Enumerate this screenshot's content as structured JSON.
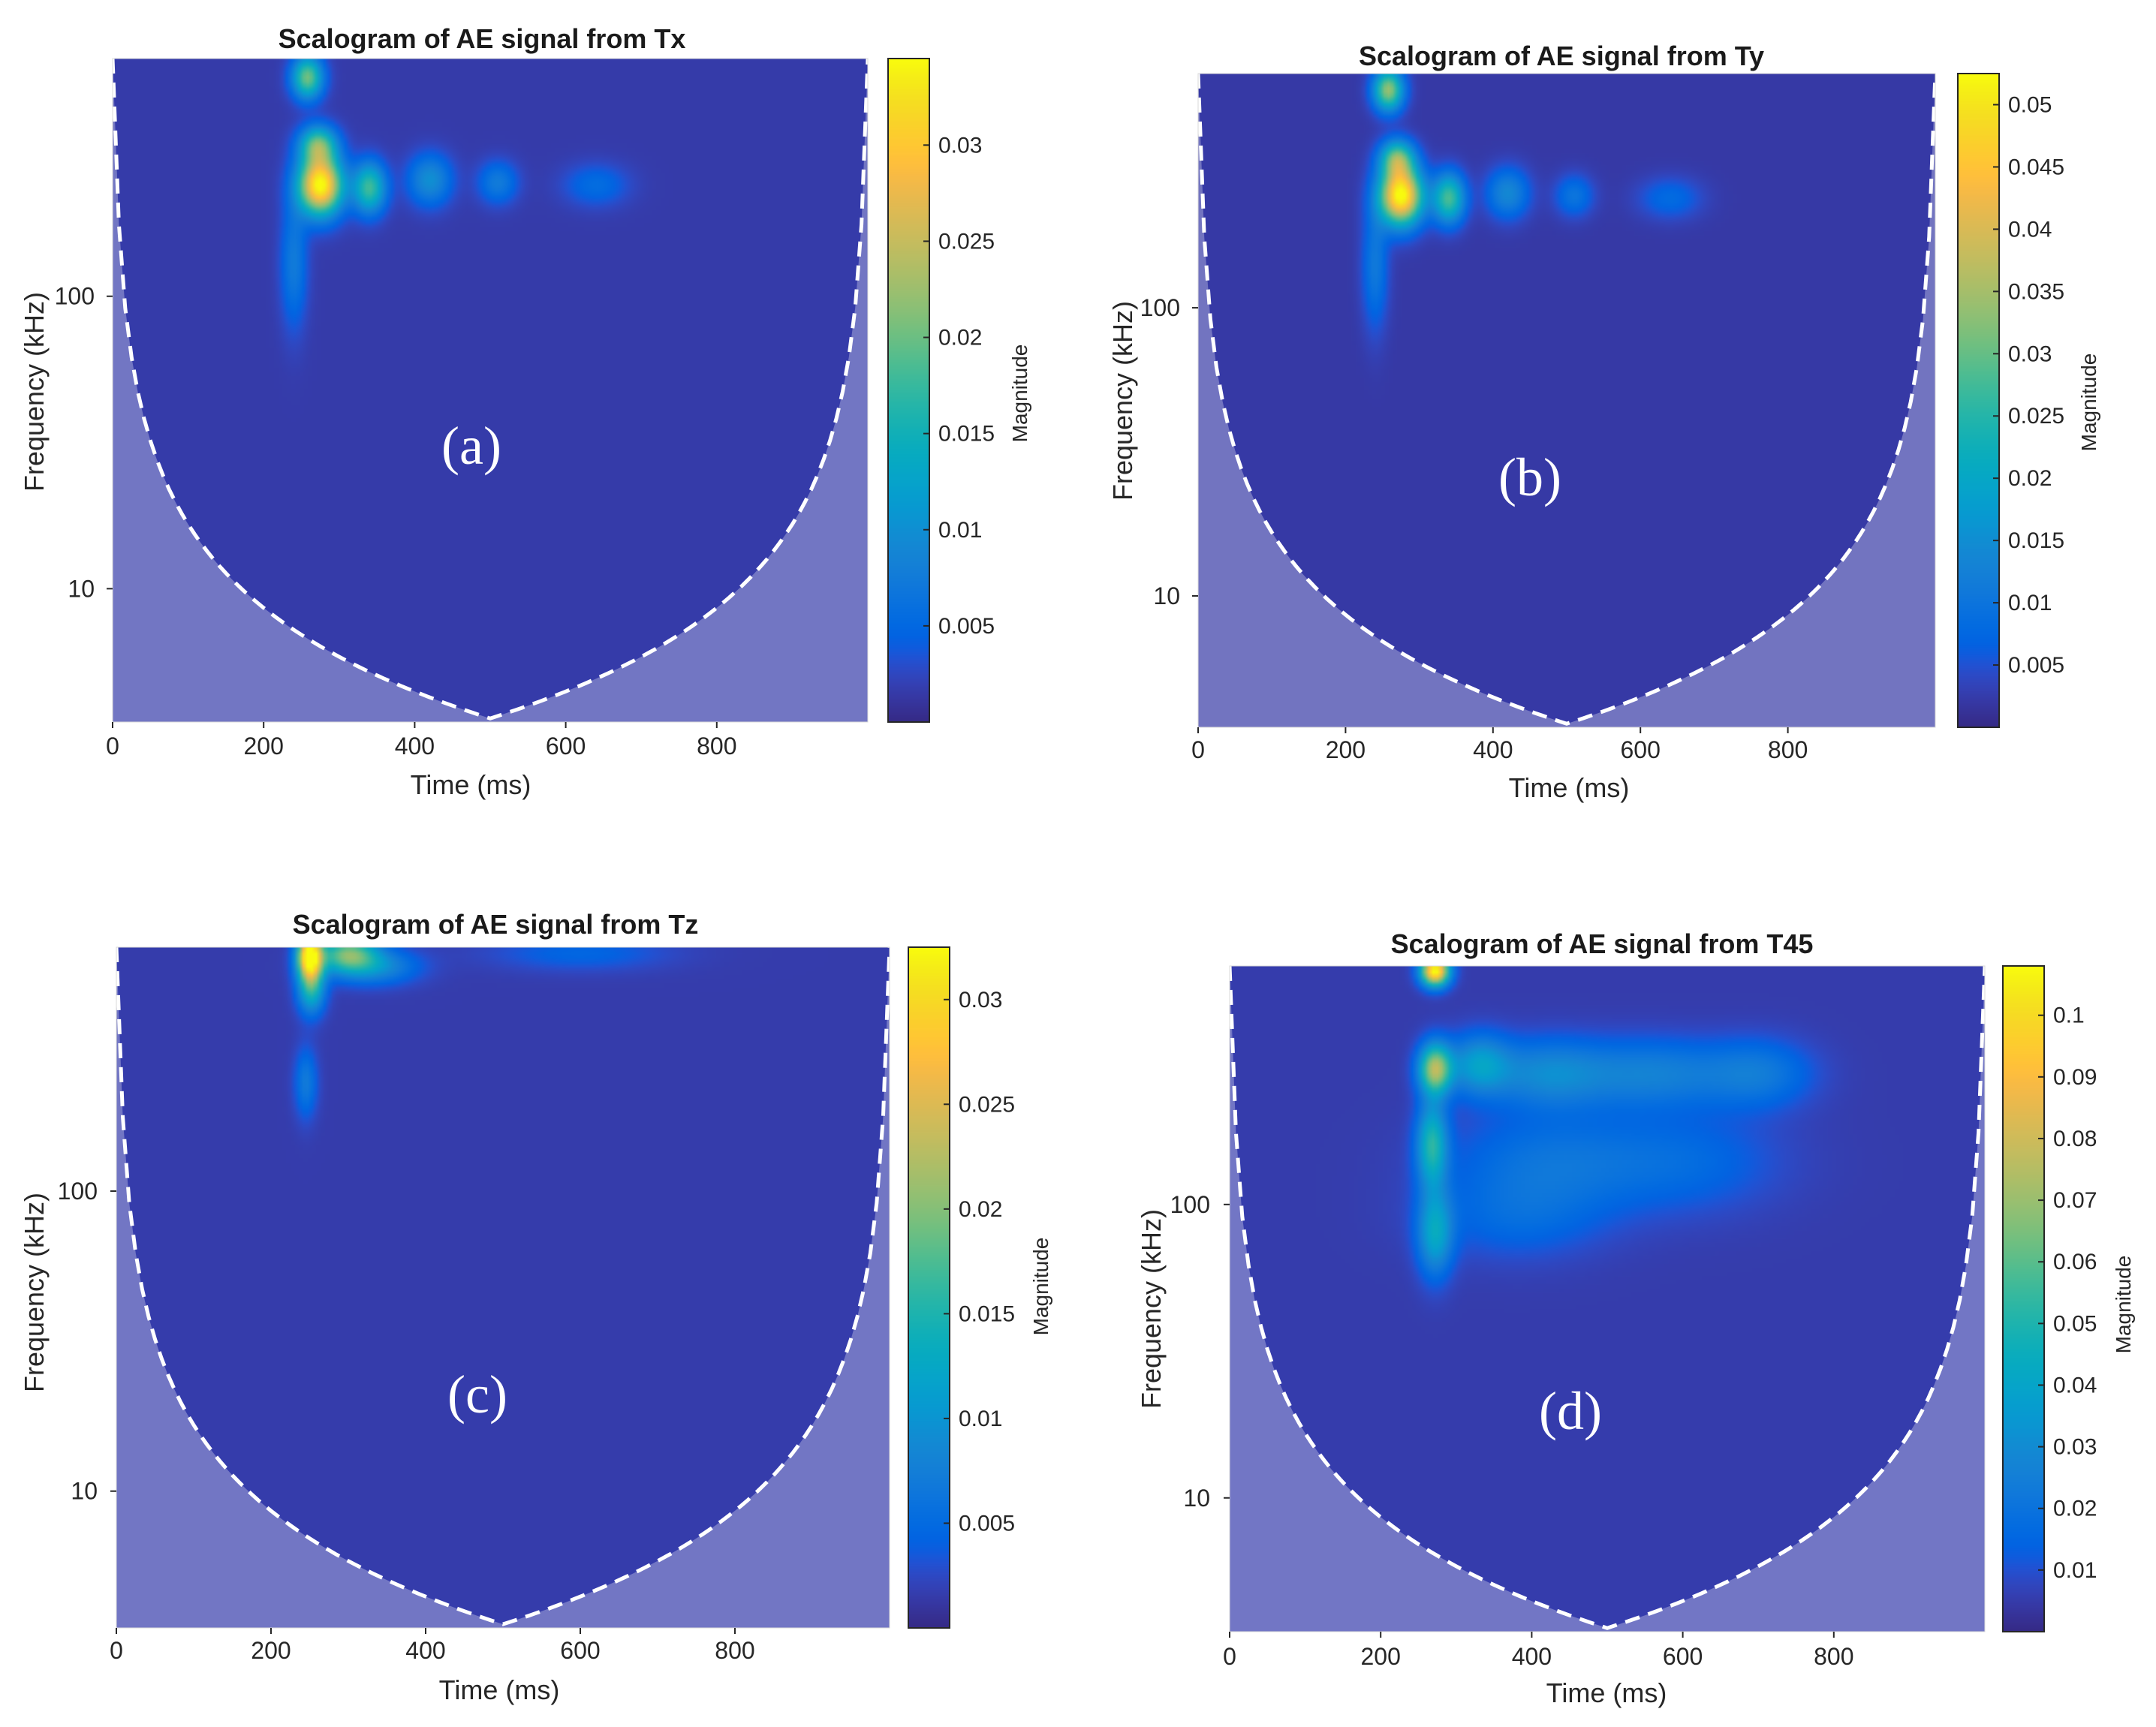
{
  "chart_data": [
    {
      "type": "heatmap",
      "panel": "(a)",
      "title": "Scalogram of AE signal from Tx",
      "xlabel": "Time (ms)",
      "ylabel": "Frequency (kHz)",
      "colorbar_label": "Magnitude",
      "x_ticks": [
        0,
        200,
        400,
        600,
        800
      ],
      "y_ticks": [
        10,
        100
      ],
      "colorbar_ticks": [
        0.005,
        0.01,
        0.015,
        0.02,
        0.025,
        0.03
      ],
      "xlim": [
        0,
        1000
      ],
      "ylim": [
        3.5,
        650
      ],
      "clim": [
        0,
        0.0345
      ],
      "background_magnitude": 0.0015,
      "blobs": [
        {
          "t": 275,
          "f": 240,
          "dt": 20,
          "dlf": 0.07,
          "v": 0.0338
        },
        {
          "t": 272,
          "f": 330,
          "dt": 17,
          "dlf": 0.045,
          "v": 0.017
        },
        {
          "t": 258,
          "f": 560,
          "dt": 14,
          "dlf": 0.05,
          "v": 0.019
        },
        {
          "t": 340,
          "f": 235,
          "dt": 15,
          "dlf": 0.06,
          "v": 0.0165
        },
        {
          "t": 240,
          "f": 130,
          "dt": 12,
          "dlf": 0.15,
          "v": 0.006
        },
        {
          "t": 420,
          "f": 250,
          "dt": 20,
          "dlf": 0.06,
          "v": 0.0085
        },
        {
          "t": 510,
          "f": 245,
          "dt": 18,
          "dlf": 0.05,
          "v": 0.006
        },
        {
          "t": 640,
          "f": 240,
          "dt": 30,
          "dlf": 0.05,
          "v": 0.004
        }
      ]
    },
    {
      "type": "heatmap",
      "panel": "(b)",
      "title": "Scalogram of AE signal from Ty",
      "xlabel": "Time (ms)",
      "ylabel": "Frequency (kHz)",
      "colorbar_label": "Magnitude",
      "x_ticks": [
        0,
        200,
        400,
        600,
        800
      ],
      "y_ticks": [
        10,
        100
      ],
      "colorbar_ticks": [
        0.005,
        0.01,
        0.015,
        0.02,
        0.025,
        0.03,
        0.035,
        0.04,
        0.045,
        0.05
      ],
      "xlim": [
        0,
        1000
      ],
      "ylim": [
        3.5,
        650
      ],
      "clim": [
        0,
        0.0525
      ],
      "background_magnitude": 0.002,
      "blobs": [
        {
          "t": 275,
          "f": 245,
          "dt": 20,
          "dlf": 0.07,
          "v": 0.052
        },
        {
          "t": 270,
          "f": 330,
          "dt": 16,
          "dlf": 0.045,
          "v": 0.026
        },
        {
          "t": 258,
          "f": 570,
          "dt": 14,
          "dlf": 0.05,
          "v": 0.032
        },
        {
          "t": 340,
          "f": 240,
          "dt": 15,
          "dlf": 0.06,
          "v": 0.026
        },
        {
          "t": 240,
          "f": 140,
          "dt": 12,
          "dlf": 0.15,
          "v": 0.009
        },
        {
          "t": 420,
          "f": 250,
          "dt": 20,
          "dlf": 0.06,
          "v": 0.012
        },
        {
          "t": 510,
          "f": 245,
          "dt": 18,
          "dlf": 0.05,
          "v": 0.008
        },
        {
          "t": 640,
          "f": 240,
          "dt": 30,
          "dlf": 0.05,
          "v": 0.006
        }
      ]
    },
    {
      "type": "heatmap",
      "panel": "(c)",
      "title": "Scalogram of AE signal from Tz",
      "xlabel": "Time (ms)",
      "ylabel": "Frequency (kHz)",
      "colorbar_label": "Magnitude",
      "x_ticks": [
        0,
        200,
        400,
        600,
        800
      ],
      "y_ticks": [
        10,
        100
      ],
      "colorbar_ticks": [
        0.005,
        0.01,
        0.015,
        0.02,
        0.025,
        0.03
      ],
      "xlim": [
        0,
        1000
      ],
      "ylim": [
        3.5,
        650
      ],
      "clim": [
        0,
        0.0325
      ],
      "background_magnitude": 0.0015,
      "blobs": [
        {
          "t": 250,
          "f": 610,
          "dt": 11,
          "dlf": 0.05,
          "v": 0.032
        },
        {
          "t": 252,
          "f": 480,
          "dt": 12,
          "dlf": 0.06,
          "v": 0.014
        },
        {
          "t": 300,
          "f": 620,
          "dt": 26,
          "dlf": 0.04,
          "v": 0.016
        },
        {
          "t": 330,
          "f": 560,
          "dt": 40,
          "dlf": 0.04,
          "v": 0.008
        },
        {
          "t": 245,
          "f": 230,
          "dt": 10,
          "dlf": 0.08,
          "v": 0.0055
        },
        {
          "t": 600,
          "f": 620,
          "dt": 80,
          "dlf": 0.04,
          "v": 0.003
        }
      ]
    },
    {
      "type": "heatmap",
      "panel": "(d)",
      "title": "Scalogram of AE signal from T45",
      "xlabel": "Time (ms)",
      "ylabel": "Frequency (kHz)",
      "colorbar_label": "Magnitude",
      "x_ticks": [
        0,
        200,
        400,
        600,
        800
      ],
      "y_ticks": [
        10,
        100
      ],
      "colorbar_ticks": [
        0.01,
        0.02,
        0.03,
        0.04,
        0.05,
        0.06,
        0.07,
        0.08,
        0.09,
        0.1
      ],
      "xlim": [
        0,
        1000
      ],
      "ylim": [
        3.5,
        650
      ],
      "clim": [
        0,
        0.108
      ],
      "background_magnitude": 0.005,
      "blobs": [
        {
          "t": 272,
          "f": 625,
          "dt": 13,
          "dlf": 0.035,
          "v": 0.106
        },
        {
          "t": 272,
          "f": 290,
          "dt": 15,
          "dlf": 0.06,
          "v": 0.068
        },
        {
          "t": 268,
          "f": 160,
          "dt": 14,
          "dlf": 0.1,
          "v": 0.045
        },
        {
          "t": 272,
          "f": 80,
          "dt": 16,
          "dlf": 0.1,
          "v": 0.035
        },
        {
          "t": 330,
          "f": 300,
          "dt": 28,
          "dlf": 0.07,
          "v": 0.03
        },
        {
          "t": 420,
          "f": 280,
          "dt": 55,
          "dlf": 0.08,
          "v": 0.023
        },
        {
          "t": 560,
          "f": 280,
          "dt": 70,
          "dlf": 0.08,
          "v": 0.02
        },
        {
          "t": 700,
          "f": 280,
          "dt": 50,
          "dlf": 0.08,
          "v": 0.017
        },
        {
          "t": 420,
          "f": 140,
          "dt": 90,
          "dlf": 0.12,
          "v": 0.014
        },
        {
          "t": 600,
          "f": 140,
          "dt": 90,
          "dlf": 0.12,
          "v": 0.011
        },
        {
          "t": 380,
          "f": 90,
          "dt": 80,
          "dlf": 0.1,
          "v": 0.01
        }
      ]
    }
  ]
}
